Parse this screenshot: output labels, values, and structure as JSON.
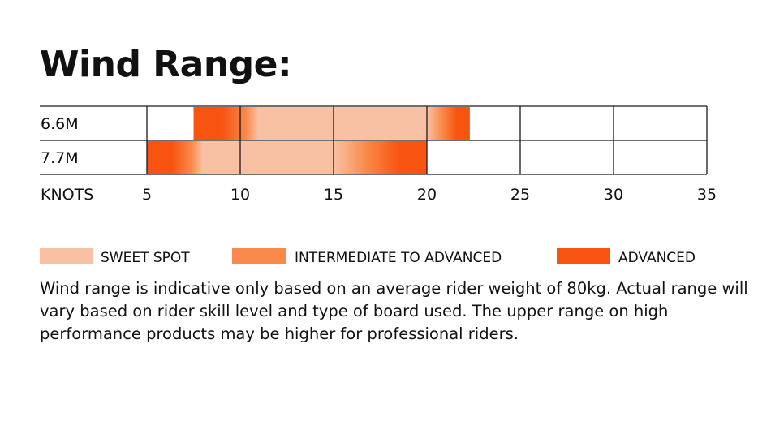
{
  "title": "Wind Range:",
  "chart_data": {
    "type": "bar",
    "orientation": "horizontal",
    "categories": [
      "6.6M",
      "7.7M"
    ],
    "xlabel": "KNOTS",
    "x_ticks": [
      5,
      10,
      15,
      20,
      25,
      30,
      35
    ],
    "xlim": [
      5,
      35
    ],
    "grid": true,
    "ranges": [
      {
        "category": "6.6M",
        "min": 7.5,
        "max": 22.3,
        "sweet_spot": [
          11,
          20
        ]
      },
      {
        "category": "7.7M",
        "min": 5,
        "max": 20,
        "sweet_spot": [
          8,
          15
        ]
      }
    ],
    "legend": [
      {
        "label": "SWEET SPOT",
        "color": "#f9c1a4"
      },
      {
        "label": "INTERMEDIATE TO ADVANCED",
        "color": "#f98a4a"
      },
      {
        "label": "ADVANCED",
        "color": "#f85411"
      }
    ],
    "legend_position": "bottom"
  },
  "note": "Wind range is indicative only based on an average rider weight of 80kg. Actual range will vary based on rider skill level and type of board used. The upper range on high performance products may be higher for professional riders."
}
